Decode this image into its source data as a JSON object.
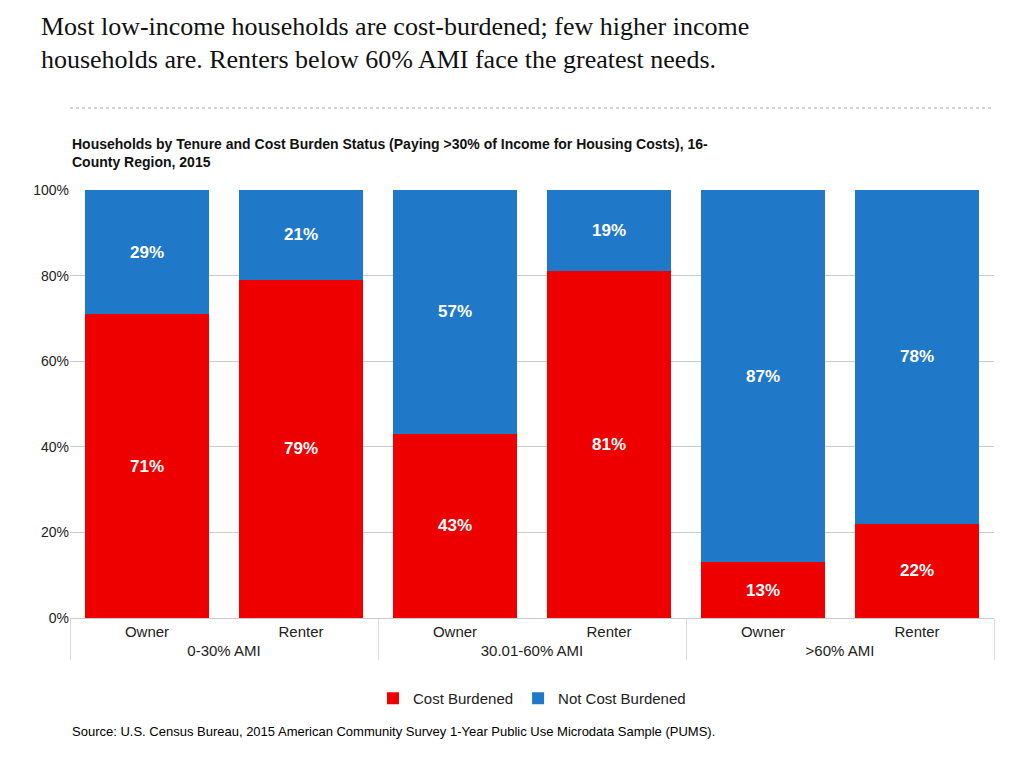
{
  "chart_data": {
    "type": "bar",
    "stacked": true,
    "title": "Most low-income households are cost-burdened; few higher income\nhouseholds are. Renters below 60% AMI face the greatest needs.",
    "subtitle": "Households by Tenure and Cost Burden Status (Paying >30% of Income for Housing Costs), 16-\nCounty Region, 2015",
    "source": "Source: U.S. Census Bureau, 2015 American Community Survey 1-Year Public Use Microdata Sample (PUMS).",
    "groups": [
      "0-30% AMI",
      "30.01-60% AMI",
      ">60% AMI"
    ],
    "categories": [
      "Owner",
      "Renter",
      "Owner",
      "Renter",
      "Owner",
      "Renter"
    ],
    "series": [
      {
        "name": "Cost Burdened",
        "color": "#EE0000",
        "values": [
          71,
          79,
          43,
          81,
          13,
          22
        ],
        "value_labels": [
          "71%",
          "79%",
          "43%",
          "81%",
          "13%",
          "22%"
        ]
      },
      {
        "name": "Not Cost Burdened",
        "color": "#1F78C8",
        "values": [
          29,
          21,
          57,
          19,
          87,
          78
        ],
        "value_labels": [
          "29%",
          "21%",
          "57%",
          "19%",
          "87%",
          "78%"
        ]
      }
    ],
    "ylim": [
      0,
      100
    ],
    "yticks": [
      {
        "value": 0,
        "label": "0%"
      },
      {
        "value": 20,
        "label": "20%"
      },
      {
        "value": 40,
        "label": "40%"
      },
      {
        "value": 60,
        "label": "60%"
      },
      {
        "value": 80,
        "label": "80%"
      },
      {
        "value": 100,
        "label": "100%"
      }
    ],
    "grid": true,
    "legend": "bottom",
    "data_labels": true
  }
}
